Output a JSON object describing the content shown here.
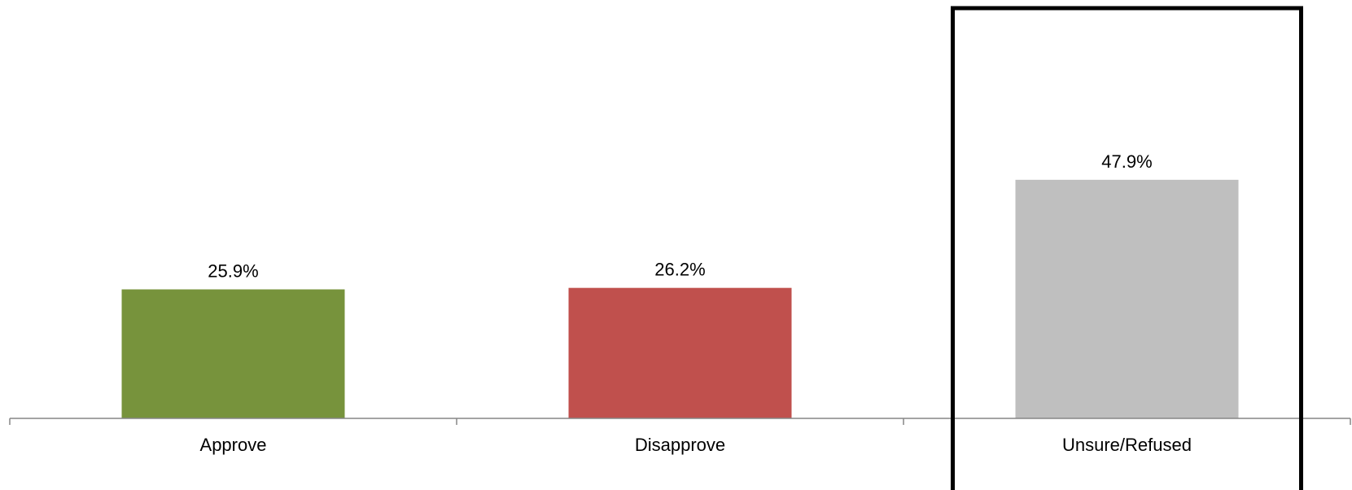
{
  "chart_data": {
    "type": "bar",
    "categories": [
      "Approve",
      "Disapprove",
      "Unsure/Refused"
    ],
    "values": [
      25.9,
      26.2,
      47.9
    ],
    "data_labels": [
      "25.9%",
      "26.2%",
      "47.9%"
    ],
    "ylim": [
      0,
      84
    ],
    "grid": false,
    "legend": "none",
    "colors": [
      "#77933C",
      "#C0504D",
      "#BFBFBF"
    ],
    "highlight": {
      "category": "Unsure/Refused",
      "stroke_color": "#000000"
    }
  }
}
